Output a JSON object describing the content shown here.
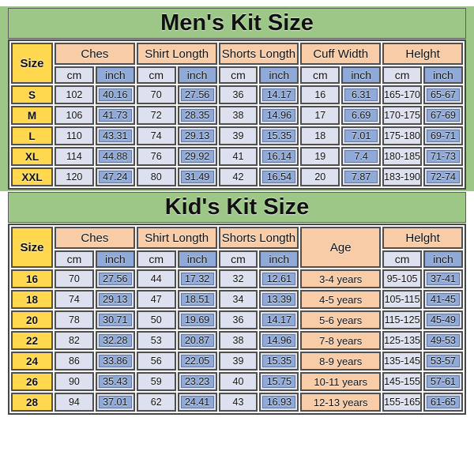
{
  "colors": {
    "banner_green": "#9dc787",
    "size_yellow": "#ffd84f",
    "header_peach": "#f8cca7",
    "cm_cell_lavender": "#dde1ef",
    "inch_cell_blue": "#8faad9",
    "grid_line": "#4f4f4f"
  },
  "chart_data": [
    {
      "type": "table",
      "title": "Men's Kit Size",
      "corner_header": "Size",
      "group_headers": [
        "Ches",
        "Shirt Longth",
        "Shorts Longth",
        "Cuff Width",
        "Helght"
      ],
      "unit_headers": [
        "cm",
        "inch"
      ],
      "rows": [
        {
          "size": "S",
          "cells": [
            "102",
            "40.16",
            "70",
            "27.56",
            "36",
            "14.17",
            "16",
            "6.31",
            "165-170",
            "65-67"
          ]
        },
        {
          "size": "M",
          "cells": [
            "106",
            "41.73",
            "72",
            "28.35",
            "38",
            "14.96",
            "17",
            "6.69",
            "170-175",
            "67-69"
          ]
        },
        {
          "size": "L",
          "cells": [
            "110",
            "43.31",
            "74",
            "29.13",
            "39",
            "15.35",
            "18",
            "7.01",
            "175-180",
            "69-71"
          ]
        },
        {
          "size": "XL",
          "cells": [
            "114",
            "44.88",
            "76",
            "29.92",
            "41",
            "16.14",
            "19",
            "7.4",
            "180-185",
            "71-73"
          ]
        },
        {
          "size": "XXL",
          "cells": [
            "120",
            "47.24",
            "80",
            "31.49",
            "42",
            "16.54",
            "20",
            "7.87",
            "183-190",
            "72-74"
          ]
        }
      ]
    },
    {
      "type": "table",
      "title": "Kid's Kit Size",
      "corner_header": "Size",
      "group_headers": [
        "Ches",
        "Shirt Longth",
        "Shorts Longth"
      ],
      "age_header": "Age",
      "height_header": "Helght",
      "unit_headers": [
        "cm",
        "inch"
      ],
      "rows": [
        {
          "size": "16",
          "cells": [
            "70",
            "27.56",
            "44",
            "17.32",
            "32",
            "12.61"
          ],
          "age": "3-4 years",
          "height_cm": "95-105",
          "height_inch": "37-41"
        },
        {
          "size": "18",
          "cells": [
            "74",
            "29.13",
            "47",
            "18.51",
            "34",
            "13.39"
          ],
          "age": "4-5 years",
          "height_cm": "105-115",
          "height_inch": "41-45"
        },
        {
          "size": "20",
          "cells": [
            "78",
            "30.71",
            "50",
            "19.69",
            "36",
            "14.17"
          ],
          "age": "5-6 years",
          "height_cm": "115-125",
          "height_inch": "45-49"
        },
        {
          "size": "22",
          "cells": [
            "82",
            "32.28",
            "53",
            "20.87",
            "38",
            "14.96"
          ],
          "age": "7-8 years",
          "height_cm": "125-135",
          "height_inch": "49-53"
        },
        {
          "size": "24",
          "cells": [
            "86",
            "33.86",
            "56",
            "22.05",
            "39",
            "15.35"
          ],
          "age": "8-9 years",
          "height_cm": "135-145",
          "height_inch": "53-57"
        },
        {
          "size": "26",
          "cells": [
            "90",
            "35.43",
            "59",
            "23.23",
            "40",
            "15.75"
          ],
          "age": "10-11 years",
          "height_cm": "145-155",
          "height_inch": "57-61"
        },
        {
          "size": "28",
          "cells": [
            "94",
            "37.01",
            "62",
            "24.41",
            "43",
            "16.93"
          ],
          "age": "12-13 years",
          "height_cm": "155-165",
          "height_inch": "61-65"
        }
      ]
    }
  ]
}
